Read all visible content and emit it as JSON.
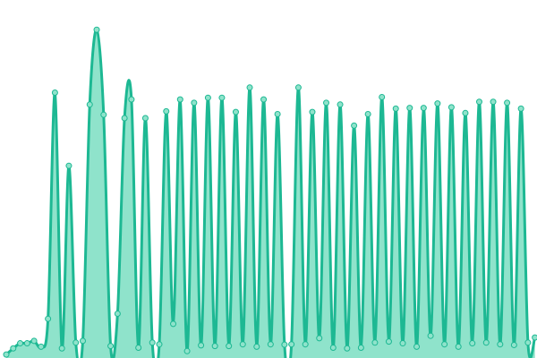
{
  "chart_data": {
    "type": "area",
    "title": "",
    "xlabel": "",
    "ylabel": "",
    "grid": false,
    "legend": "none",
    "interpolation": "smooth",
    "xlim": [
      0,
      76
    ],
    "ylim": [
      0,
      100
    ],
    "colors": {
      "line": "#1db893",
      "fill": "#8fe3cb",
      "marker_fill": "#8fe3cb",
      "marker_stroke": "#1db893"
    },
    "x": [
      0,
      1,
      2,
      3,
      4,
      5,
      6,
      7,
      8,
      9,
      10,
      11,
      12,
      13,
      14,
      15,
      16,
      17,
      18,
      19,
      20,
      21,
      22,
      23,
      24,
      25,
      26,
      27,
      28,
      29,
      30,
      31,
      32,
      33,
      34,
      35,
      36,
      37,
      38,
      39,
      40,
      41,
      42,
      43,
      44,
      45,
      46,
      47,
      48,
      49,
      50,
      51,
      52,
      53,
      54,
      55,
      56,
      57,
      58,
      59,
      60,
      61,
      62,
      63,
      64,
      65,
      66,
      67,
      68,
      69,
      70,
      71,
      72,
      73,
      74,
      75,
      76
    ],
    "series": [
      {
        "values": [
          0.5,
          2.3,
          3.8,
          3.8,
          4.5,
          2.8,
          11,
          77.5,
          2.3,
          56,
          4,
          4.5,
          74,
          96,
          71,
          3,
          12.5,
          70,
          75.5,
          2.5,
          70,
          4,
          3.5,
          72,
          9.5,
          75.5,
          1.5,
          74.5,
          3.2,
          76,
          3,
          76,
          3,
          71.8,
          3.5,
          79,
          2.8,
          75.5,
          3.5,
          71.2,
          3.4,
          3.5,
          79,
          3.5,
          71.8,
          5.3,
          74.5,
          2.5,
          74,
          2.3,
          67.8,
          2.5,
          71.2,
          4,
          76.2,
          4.3,
          72.8,
          3.8,
          73,
          2.8,
          73,
          6,
          74.3,
          3.5,
          73.2,
          2.8,
          71.5,
          3.8,
          74.8,
          4,
          74.8,
          3.5,
          74.5,
          3.3,
          72.8,
          4,
          5.5
        ]
      }
    ]
  }
}
